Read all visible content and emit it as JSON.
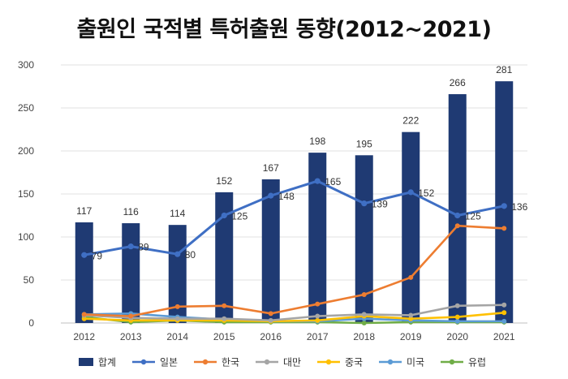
{
  "chart_data": {
    "type": "bar",
    "title": "출원인 국적별 특허출원 동향(2012~2021)",
    "categories": [
      "2012",
      "2013",
      "2014",
      "2015",
      "2016",
      "2017",
      "2018",
      "2019",
      "2020",
      "2021"
    ],
    "ylim": [
      0,
      300
    ],
    "yticks": [
      "0",
      "50",
      "100",
      "150",
      "200",
      "250",
      "300"
    ],
    "grid": true,
    "legend_position": "bottom",
    "series": [
      {
        "name": "합계",
        "kind": "bar",
        "color": "#1F3A73",
        "labeled": true,
        "values": [
          117,
          116,
          114,
          152,
          167,
          198,
          195,
          222,
          266,
          281
        ]
      },
      {
        "name": "일본",
        "kind": "line",
        "color": "#3F6FC4",
        "labeled": true,
        "values": [
          79,
          89,
          80,
          125,
          148,
          165,
          139,
          152,
          125,
          136
        ]
      },
      {
        "name": "한국",
        "kind": "line",
        "color": "#ED7D31",
        "labeled": false,
        "values": [
          10,
          8,
          19,
          20,
          11,
          22,
          33,
          53,
          113,
          110
        ]
      },
      {
        "name": "대만",
        "kind": "line",
        "color": "#A5A5A5",
        "labeled": false,
        "values": [
          9,
          6,
          5,
          5,
          3,
          8,
          10,
          9,
          20,
          21
        ]
      },
      {
        "name": "중국",
        "kind": "line",
        "color": "#FFC000",
        "labeled": false,
        "values": [
          5,
          3,
          3,
          3,
          2,
          3,
          8,
          5,
          7,
          12
        ]
      },
      {
        "name": "미국",
        "kind": "line",
        "color": "#5B9BD5",
        "labeled": false,
        "values": [
          10,
          11,
          7,
          4,
          2,
          2,
          5,
          3,
          2,
          2
        ]
      },
      {
        "name": "유럽",
        "kind": "line",
        "color": "#70AD47",
        "labeled": false,
        "values": [
          7,
          1,
          3,
          1,
          1,
          1,
          0,
          1,
          1,
          1
        ]
      }
    ]
  }
}
